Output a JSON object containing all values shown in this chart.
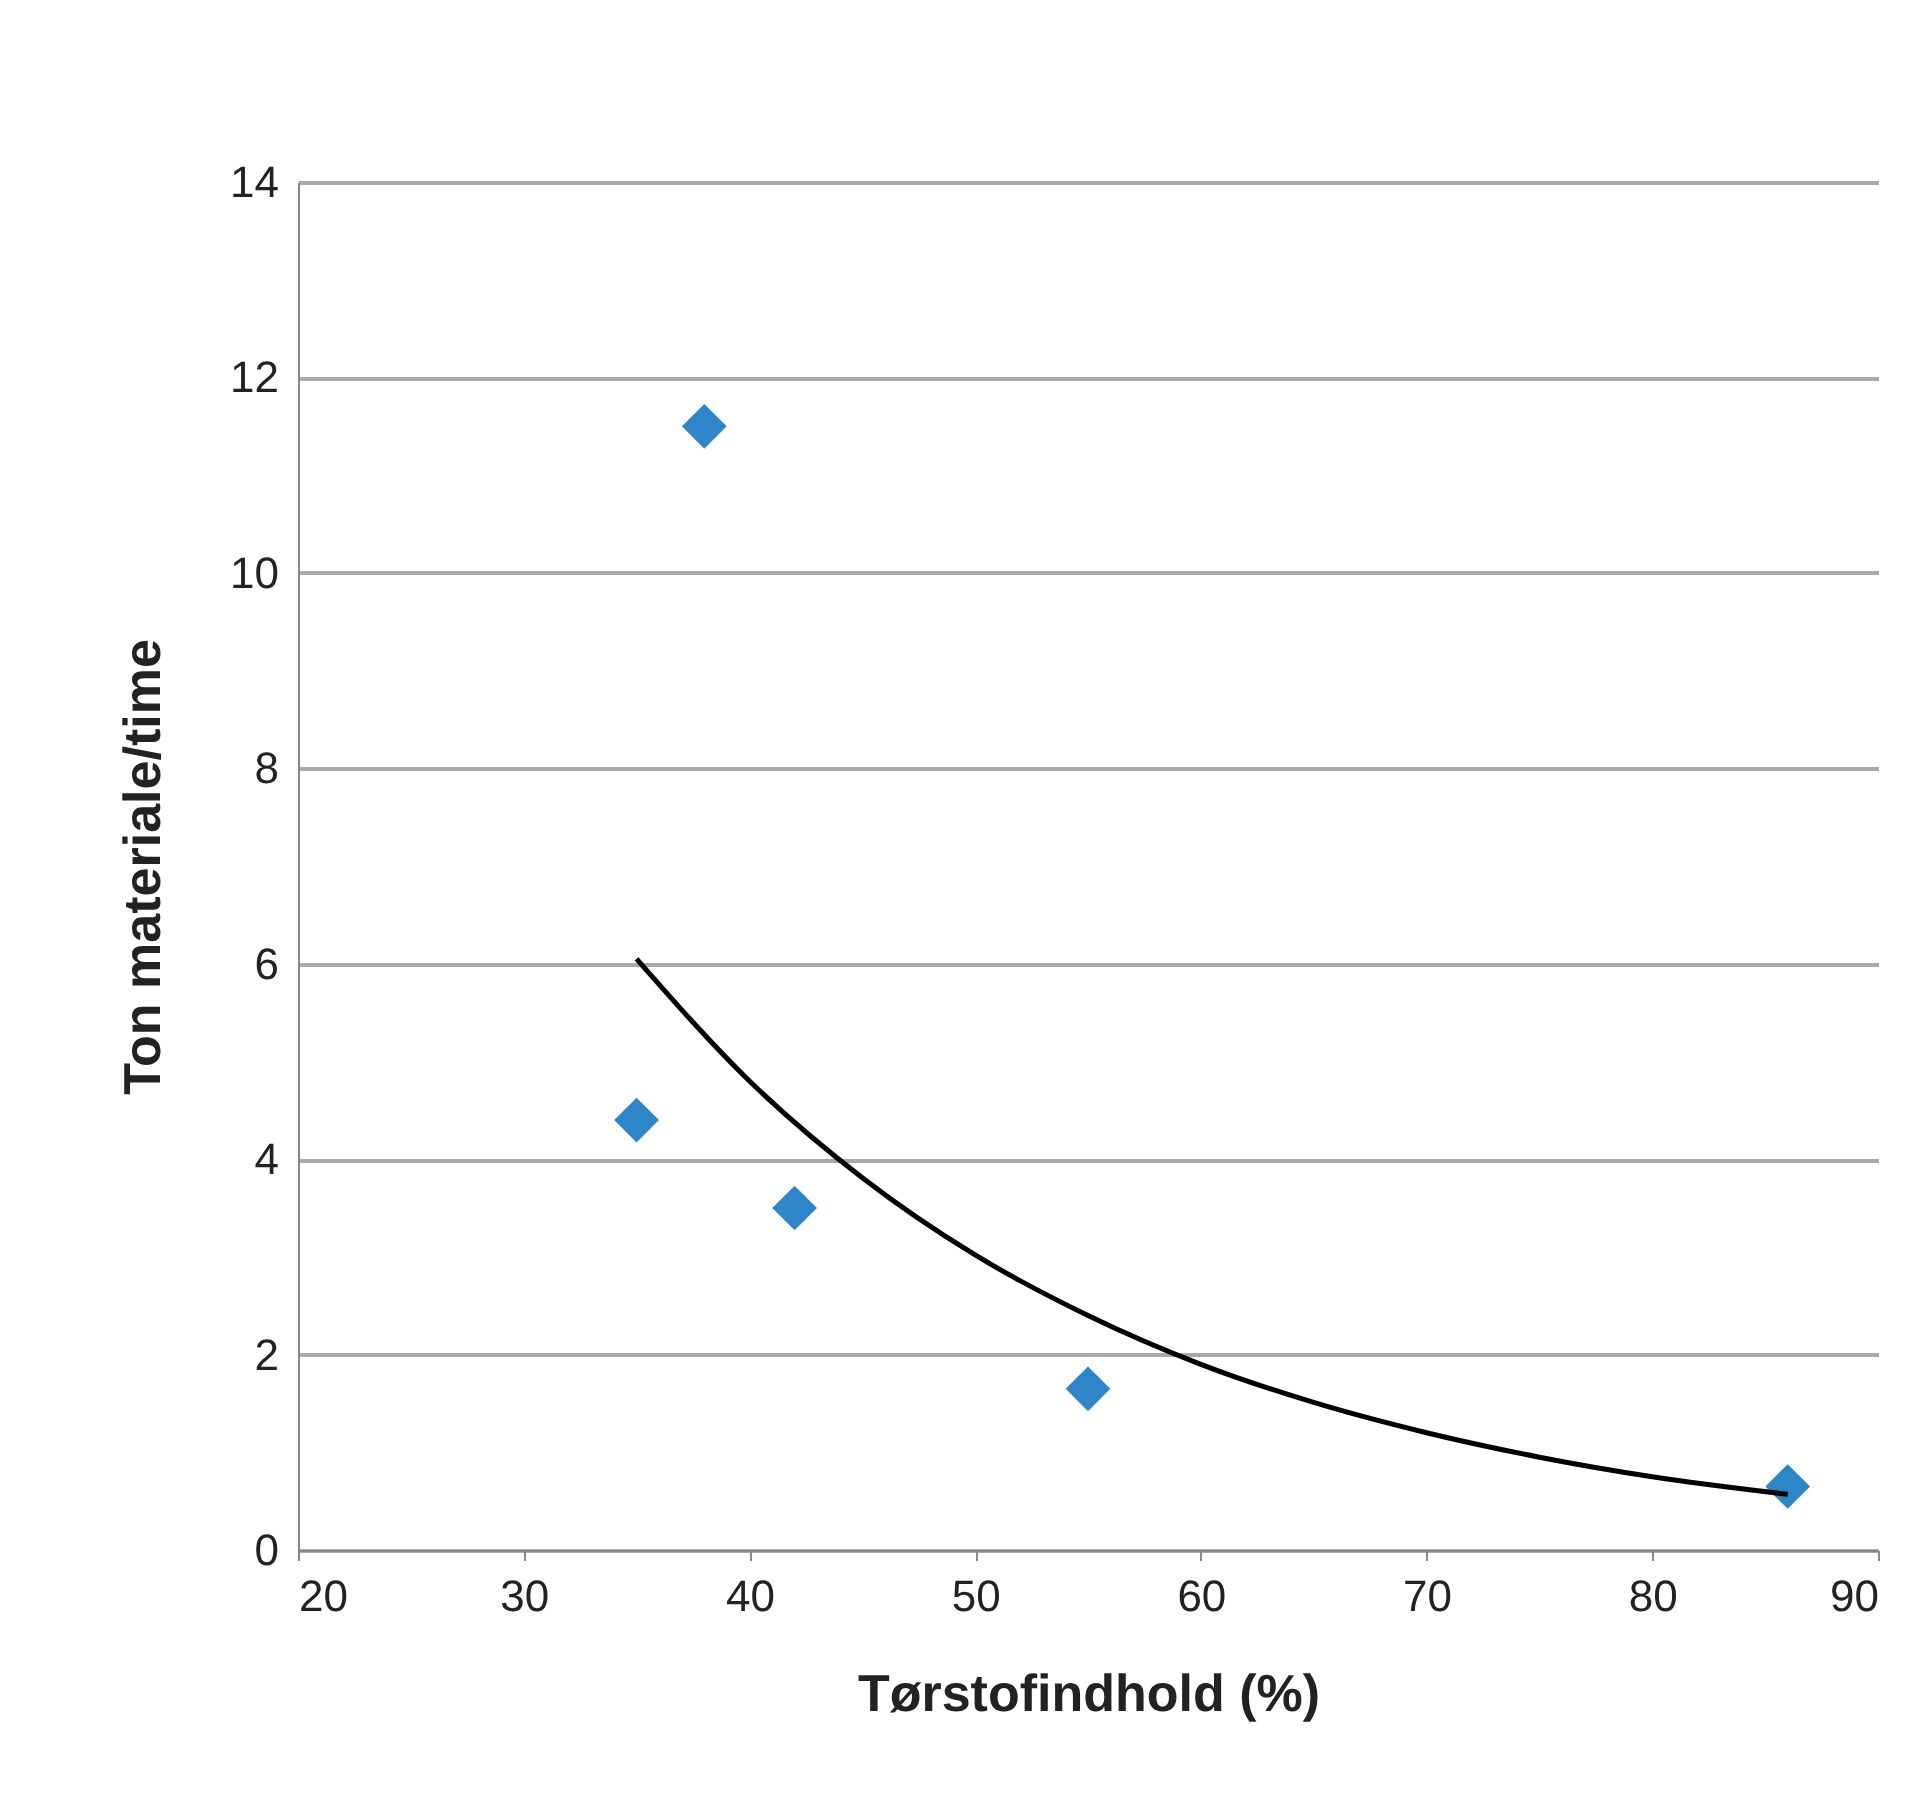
{
  "chart_data": {
    "type": "scatter",
    "xlabel": "Tørstofindhold (%)",
    "ylabel": "Ton materiale/time",
    "xlim": [
      20,
      90
    ],
    "xticks": [
      20,
      30,
      40,
      50,
      60,
      70,
      80,
      90
    ],
    "ylim": [
      0,
      14
    ],
    "yticks": [
      0,
      2,
      4,
      6,
      8,
      10,
      12,
      14
    ],
    "grid": "y",
    "series": [
      {
        "marker": "diamond",
        "color": "#2e86c8",
        "x": [
          35,
          38,
          42,
          55,
          86
        ],
        "values": [
          4.4,
          11.5,
          3.5,
          1.65,
          0.65
        ]
      },
      {
        "type": "line",
        "line_style": "solid",
        "marker": "none",
        "color": "#000000",
        "x": [
          35,
          40,
          45,
          50,
          55,
          60,
          65,
          70,
          75,
          80,
          86
        ],
        "values": [
          6.05,
          4.8,
          3.81,
          3.02,
          2.4,
          1.9,
          1.51,
          1.2,
          0.95,
          0.75,
          0.57
        ]
      }
    ]
  }
}
